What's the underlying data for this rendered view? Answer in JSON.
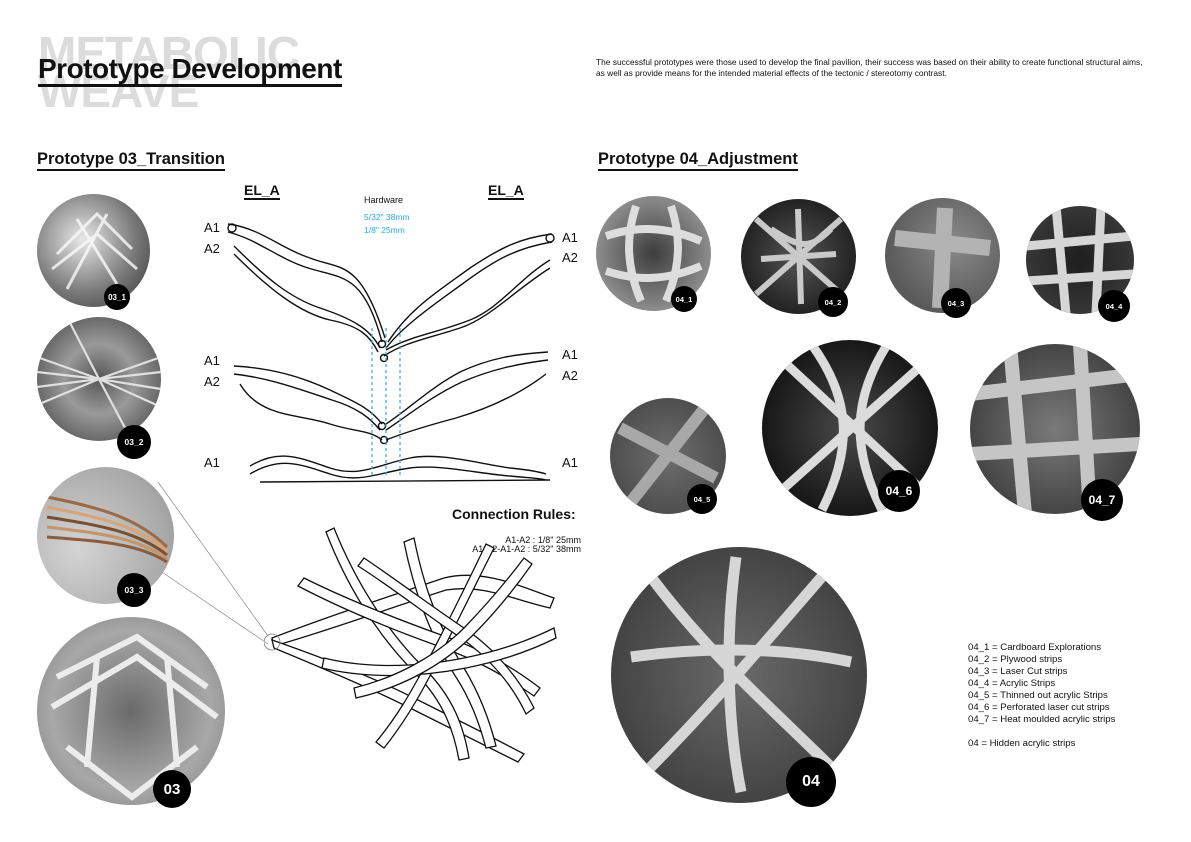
{
  "header": {
    "bg_title_line1": "METABOLIC",
    "bg_title_line2": "WEAVE",
    "title": "Prototype Development",
    "intro": "The successful prototypes were those used to develop the final pavilion, their success was based on their ability to create functional structural aims, as well as provide means for the intended material effects of the tectonic / stereotomy contrast."
  },
  "prototype03": {
    "title": "Prototype 03_Transition",
    "el_left": "EL_A",
    "el_right": "EL_A",
    "hardware_label": "Hardware",
    "hardware_1": "5/32\" 38mm",
    "hardware_2": "1/8\" 25mm",
    "left_labels": [
      "A1",
      "A2",
      "A1",
      "A2",
      "A1"
    ],
    "right_labels": [
      "A1",
      "A2",
      "A1",
      "A2",
      "A1"
    ],
    "connection_title": "Connection Rules:",
    "connection_rule_1": "A1-A2 : 1/8\" 25mm",
    "connection_rule_2": "A1-A2-A1-A2 : 5/32\" 38mm",
    "photos": [
      "03_1",
      "03_2",
      "03_3",
      "03"
    ]
  },
  "prototype04": {
    "title": "Prototype 04_Adjustment",
    "photos": [
      "04_1",
      "04_2",
      "04_3",
      "04_4",
      "04_5",
      "04_6",
      "04_7",
      "04"
    ],
    "legend": [
      "04_1 = Cardboard Explorations",
      "04_2 = Plywood strips",
      "04_3 = Laser Cut strips",
      "04_4 = Acrylic Strips",
      "04_5 = Thinned out acrylic Strips",
      "04_6 = Perforated laser cut strips",
      "04_7 = Heat moulded acrylic strips"
    ],
    "legend_note": "04 = Hidden acrylic strips"
  },
  "colors": {
    "accent_blue": "#29a9e0",
    "ink": "#111111",
    "ghost_title": "#dcdcdc"
  }
}
